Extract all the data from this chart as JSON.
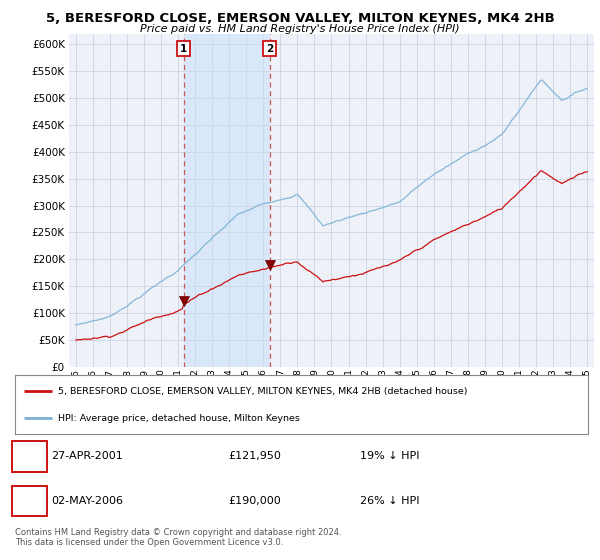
{
  "title_line1": "5, BERESFORD CLOSE, EMERSON VALLEY, MILTON KEYNES, MK4 2HB",
  "title_line2": "Price paid vs. HM Land Registry's House Price Index (HPI)",
  "background_color": "#ffffff",
  "plot_bg_color": "#eef2f8",
  "grid_color": "#d0d8e8",
  "hpi_color": "#7bafd4",
  "price_color": "#cc1111",
  "shade_color": "#d8e8f8",
  "purchase1_date": "27-APR-2001",
  "purchase1_price": 121950,
  "purchase1_label": "19% ↓ HPI",
  "purchase1_x": 2001.32,
  "purchase2_date": "02-MAY-2006",
  "purchase2_price": 190000,
  "purchase2_label": "26% ↓ HPI",
  "purchase2_x": 2006.37,
  "legend_property": "5, BERESFORD CLOSE, EMERSON VALLEY, MILTON KEYNES, MK4 2HB (detached house)",
  "legend_hpi": "HPI: Average price, detached house, Milton Keynes",
  "footer1": "Contains HM Land Registry data © Crown copyright and database right 2024.",
  "footer2": "This data is licensed under the Open Government Licence v3.0.",
  "ylim_min": 0,
  "ylim_max": 620000,
  "yticks": [
    0,
    50000,
    100000,
    150000,
    200000,
    250000,
    300000,
    350000,
    400000,
    450000,
    500000,
    550000,
    600000
  ],
  "xlim_min": 1994.6,
  "xlim_max": 2025.4
}
